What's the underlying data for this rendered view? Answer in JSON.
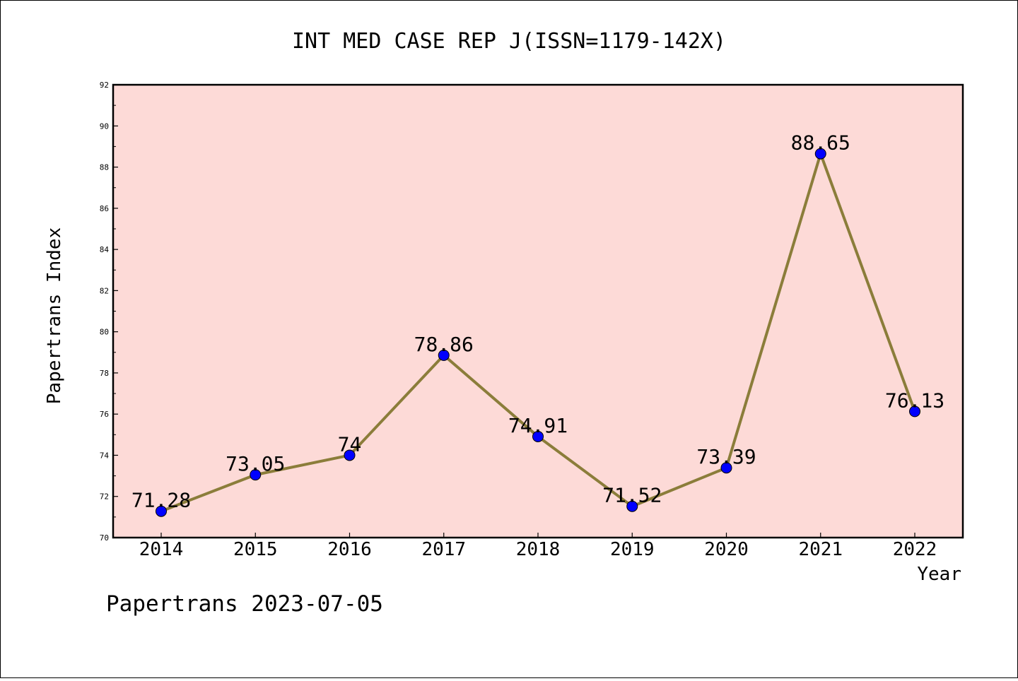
{
  "chart_data": {
    "type": "line",
    "title": "INT MED CASE REP J(ISSN=1179-142X)",
    "xlabel": "Year",
    "ylabel": "Papertrans Index",
    "categories": [
      "2014",
      "2015",
      "2016",
      "2017",
      "2018",
      "2019",
      "2020",
      "2021",
      "2022"
    ],
    "values": [
      71.28,
      73.05,
      74,
      78.86,
      74.91,
      71.52,
      73.39,
      88.65,
      76.13
    ],
    "value_labels": [
      "71.28",
      "73.05",
      "74",
      "78.86",
      "74.91",
      "71.52",
      "73.39",
      "88.65",
      "76.13"
    ],
    "ylim": [
      70,
      92
    ],
    "yticks": [
      "70",
      "72",
      "74",
      "76",
      "78",
      "80",
      "82",
      "84",
      "86",
      "88",
      "90",
      "92"
    ],
    "grid": false,
    "colors": {
      "plot_background": "#fddad7",
      "line": "#8b7d3a",
      "marker": "#0000ff"
    }
  },
  "footer": {
    "watermark": "Papertrans 2023-07-05"
  }
}
